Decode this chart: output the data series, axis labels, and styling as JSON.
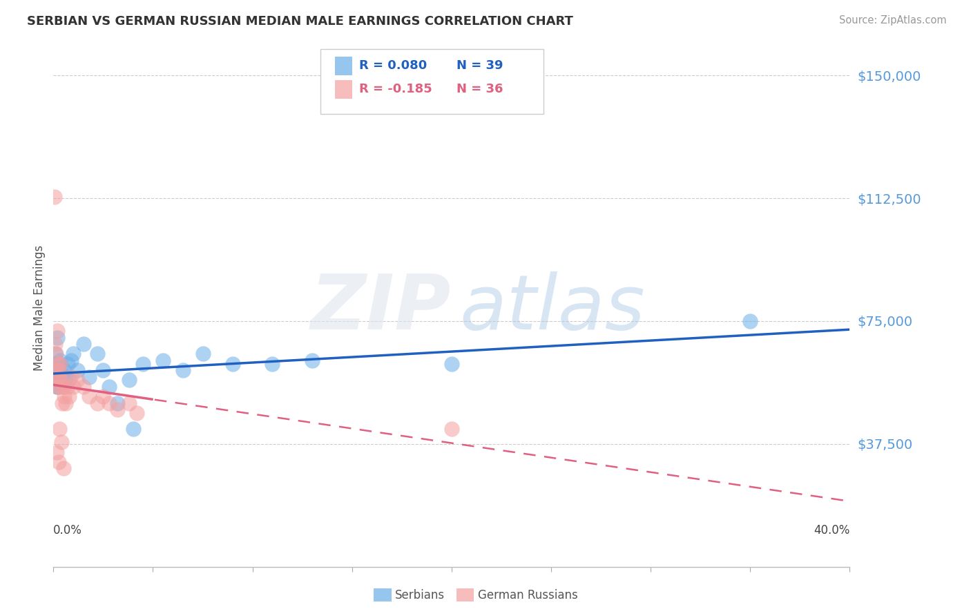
{
  "title": "SERBIAN VS GERMAN RUSSIAN MEDIAN MALE EARNINGS CORRELATION CHART",
  "source": "Source: ZipAtlas.com",
  "ylabel": "Median Male Earnings",
  "yticks": [
    0,
    37500,
    75000,
    112500,
    150000
  ],
  "ytick_labels": [
    "",
    "$37,500",
    "$75,000",
    "$112,500",
    "$150,000"
  ],
  "xmin": 0.0,
  "xmax": 40.0,
  "ymin": 18000,
  "ymax": 158000,
  "blue_color": "#6aaee8",
  "pink_color": "#f4a0a0",
  "blue_line_color": "#2060c0",
  "pink_line_color": "#e06080",
  "title_color": "#333333",
  "source_color": "#999999",
  "ytick_color": "#5599dd",
  "grid_color": "#cccccc",
  "legend_serbian": "R = 0.080",
  "legend_serbian_n": "N = 39",
  "legend_german": "R = -0.185",
  "legend_german_n": "N = 36",
  "legend_label_serbian": "Serbians",
  "legend_label_german": "German Russians",
  "serbian_points": [
    [
      0.05,
      62000
    ],
    [
      0.08,
      58000
    ],
    [
      0.1,
      65000
    ],
    [
      0.12,
      60000
    ],
    [
      0.15,
      55000
    ],
    [
      0.18,
      70000
    ],
    [
      0.2,
      58000
    ],
    [
      0.22,
      55000
    ],
    [
      0.25,
      62000
    ],
    [
      0.28,
      57000
    ],
    [
      0.3,
      60000
    ],
    [
      0.35,
      63000
    ],
    [
      0.4,
      56000
    ],
    [
      0.45,
      58000
    ],
    [
      0.5,
      55000
    ],
    [
      0.55,
      60000
    ],
    [
      0.6,
      58000
    ],
    [
      0.7,
      62000
    ],
    [
      0.8,
      57000
    ],
    [
      0.9,
      63000
    ],
    [
      1.0,
      65000
    ],
    [
      1.2,
      60000
    ],
    [
      1.5,
      68000
    ],
    [
      1.8,
      58000
    ],
    [
      2.2,
      65000
    ],
    [
      2.5,
      60000
    ],
    [
      2.8,
      55000
    ],
    [
      3.2,
      50000
    ],
    [
      3.8,
      57000
    ],
    [
      4.5,
      62000
    ],
    [
      5.5,
      63000
    ],
    [
      6.5,
      60000
    ],
    [
      7.5,
      65000
    ],
    [
      9.0,
      62000
    ],
    [
      11.0,
      62000
    ],
    [
      13.0,
      63000
    ],
    [
      20.0,
      62000
    ],
    [
      35.0,
      75000
    ],
    [
      4.0,
      42000
    ]
  ],
  "german_russian_points": [
    [
      0.05,
      113000
    ],
    [
      0.08,
      68000
    ],
    [
      0.1,
      60000
    ],
    [
      0.12,
      65000
    ],
    [
      0.15,
      58000
    ],
    [
      0.18,
      55000
    ],
    [
      0.2,
      72000
    ],
    [
      0.22,
      62000
    ],
    [
      0.25,
      58000
    ],
    [
      0.28,
      60000
    ],
    [
      0.3,
      55000
    ],
    [
      0.35,
      62000
    ],
    [
      0.4,
      57000
    ],
    [
      0.45,
      50000
    ],
    [
      0.5,
      55000
    ],
    [
      0.55,
      52000
    ],
    [
      0.6,
      50000
    ],
    [
      0.7,
      55000
    ],
    [
      0.8,
      52000
    ],
    [
      0.9,
      58000
    ],
    [
      1.0,
      55000
    ],
    [
      1.2,
      57000
    ],
    [
      1.5,
      55000
    ],
    [
      1.8,
      52000
    ],
    [
      2.2,
      50000
    ],
    [
      2.5,
      52000
    ],
    [
      2.8,
      50000
    ],
    [
      3.2,
      48000
    ],
    [
      3.8,
      50000
    ],
    [
      4.2,
      47000
    ],
    [
      0.15,
      35000
    ],
    [
      0.25,
      32000
    ],
    [
      20.0,
      42000
    ],
    [
      0.3,
      42000
    ],
    [
      0.4,
      38000
    ],
    [
      0.5,
      30000
    ]
  ],
  "german_solid_max_x": 5.0
}
